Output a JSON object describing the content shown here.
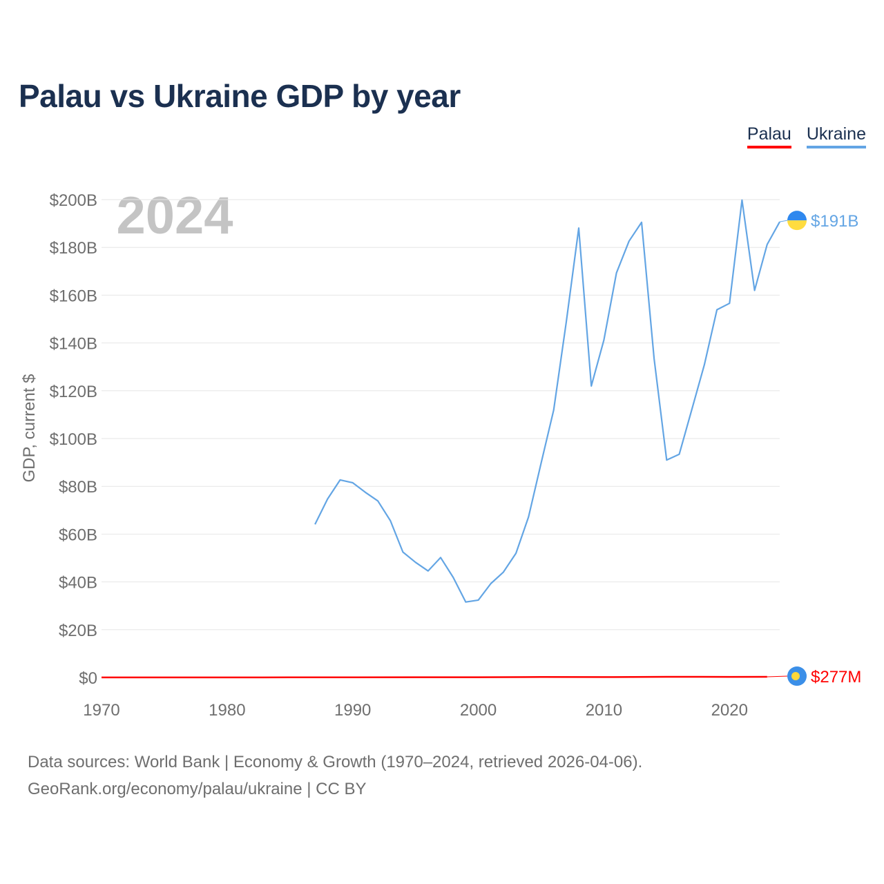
{
  "title": "Palau vs Ukraine GDP by year",
  "legend": {
    "palau": "Palau",
    "ukraine": "Ukraine"
  },
  "year_watermark": "2024",
  "source": {
    "line1": "Data sources: World Bank | Economy & Growth (1970–2024, retrieved 2026-04-06).",
    "line2": "GeoRank.org/economy/palau/ukraine | CC BY"
  },
  "colors": {
    "palau": "#ff0000",
    "ukraine": "#63a5e4",
    "grid": "#e6e6e6",
    "axis_text": "#6e6e6e"
  },
  "chart_data": {
    "type": "line",
    "title": "Palau vs Ukraine GDP by year",
    "xlabel": "",
    "ylabel": "GDP, current $",
    "xlim": [
      1970,
      2024
    ],
    "ylim": [
      0,
      200
    ],
    "y_unit": "billions USD",
    "x_ticks": [
      1970,
      1980,
      1990,
      2000,
      2010,
      2020
    ],
    "x_tick_labels": [
      "1970",
      "1980",
      "1990",
      "2000",
      "2010",
      "2020"
    ],
    "y_ticks": [
      0,
      20,
      40,
      60,
      80,
      100,
      120,
      140,
      160,
      180,
      200
    ],
    "y_tick_labels": [
      "$0",
      "$20B",
      "$40B",
      "$60B",
      "$80B",
      "$100B",
      "$120B",
      "$140B",
      "$160B",
      "$180B",
      "$200B"
    ],
    "grid": true,
    "legend_position": "top-right",
    "series": [
      {
        "name": "Ukraine",
        "end_label": "$191B",
        "x": [
          1987,
          1988,
          1989,
          1990,
          1991,
          1992,
          1993,
          1994,
          1995,
          1996,
          1997,
          1998,
          1999,
          2000,
          2001,
          2002,
          2003,
          2004,
          2005,
          2006,
          2007,
          2008,
          2009,
          2010,
          2011,
          2012,
          2013,
          2014,
          2015,
          2016,
          2017,
          2018,
          2019,
          2020,
          2021,
          2022,
          2023,
          2024
        ],
        "values": [
          64.1,
          74.7,
          82.7,
          81.5,
          77.5,
          73.9,
          65.6,
          52.5,
          48.2,
          44.6,
          50.2,
          41.9,
          31.6,
          32.4,
          39.3,
          44.1,
          52.0,
          67.2,
          89.7,
          111.9,
          148.7,
          188.1,
          122.0,
          141.2,
          169.3,
          182.6,
          190.5,
          133.5,
          91.0,
          93.4,
          112.1,
          130.9,
          153.9,
          156.6,
          199.8,
          162.0,
          181.2,
          190.7
        ]
      },
      {
        "name": "Palau",
        "end_label": "$277M",
        "x": [
          1970,
          1975,
          1980,
          1985,
          1990,
          1995,
          2000,
          2005,
          2010,
          2015,
          2020,
          2023
        ],
        "values": [
          0.02,
          0.03,
          0.04,
          0.06,
          0.08,
          0.11,
          0.13,
          0.19,
          0.18,
          0.29,
          0.26,
          0.277
        ]
      }
    ]
  }
}
